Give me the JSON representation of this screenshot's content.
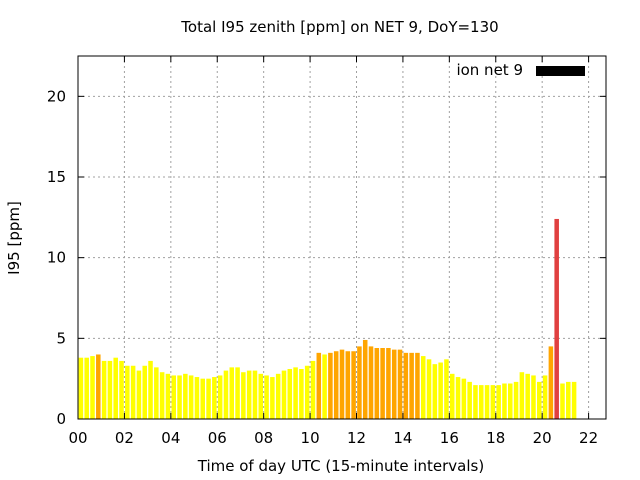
{
  "chart_data": {
    "type": "bar",
    "title": "Total I95 zenith [ppm] on NET 9, DoY=130",
    "xlabel": "Time of day UTC (15-minute intervals)",
    "ylabel": "I95 [ppm]",
    "xlim": [
      0,
      22.75
    ],
    "ylim": [
      0,
      22.5
    ],
    "grid": true,
    "legend_position": "top-right",
    "legend": [
      {
        "name": "ion net 9",
        "color": "#000000"
      }
    ],
    "x_ticks": [
      "00",
      "02",
      "04",
      "06",
      "08",
      "10",
      "12",
      "14",
      "16",
      "18",
      "20",
      "22"
    ],
    "y_ticks": [
      "0",
      "5",
      "10",
      "15",
      "20"
    ],
    "colors": {
      "low": "#ffff00",
      "medium": "#ffa500",
      "high": "#e04040"
    },
    "interval_hours": 0.25,
    "values": [
      3.8,
      3.8,
      3.9,
      4.0,
      3.6,
      3.6,
      3.8,
      3.6,
      3.3,
      3.3,
      3.0,
      3.3,
      3.6,
      3.2,
      2.9,
      2.8,
      2.7,
      2.7,
      2.8,
      2.7,
      2.6,
      2.5,
      2.5,
      2.6,
      2.7,
      3.0,
      3.2,
      3.2,
      2.9,
      3.0,
      3.0,
      2.8,
      2.7,
      2.6,
      2.8,
      3.0,
      3.1,
      3.2,
      3.1,
      3.3,
      3.6,
      4.1,
      4.0,
      4.1,
      4.2,
      4.3,
      4.2,
      4.2,
      4.5,
      4.9,
      4.5,
      4.4,
      4.4,
      4.4,
      4.3,
      4.3,
      4.1,
      4.1,
      4.1,
      3.9,
      3.7,
      3.4,
      3.5,
      3.7,
      2.8,
      2.6,
      2.5,
      2.3,
      2.1,
      2.1,
      2.1,
      2.1,
      2.1,
      2.2,
      2.2,
      2.3,
      2.9,
      2.8,
      2.7,
      2.3,
      2.7,
      4.5,
      12.4,
      2.2,
      2.3,
      2.3
    ],
    "levels": [
      "low",
      "low",
      "low",
      "medium",
      "low",
      "low",
      "low",
      "low",
      "low",
      "low",
      "low",
      "low",
      "low",
      "low",
      "low",
      "low",
      "low",
      "low",
      "low",
      "low",
      "low",
      "low",
      "low",
      "low",
      "low",
      "low",
      "low",
      "low",
      "low",
      "low",
      "low",
      "low",
      "low",
      "low",
      "low",
      "low",
      "low",
      "low",
      "low",
      "low",
      "low",
      "medium",
      "low",
      "medium",
      "medium",
      "medium",
      "medium",
      "medium",
      "medium",
      "medium",
      "medium",
      "medium",
      "medium",
      "medium",
      "medium",
      "medium",
      "medium",
      "medium",
      "medium",
      "low",
      "low",
      "low",
      "low",
      "low",
      "low",
      "low",
      "low",
      "low",
      "low",
      "low",
      "low",
      "low",
      "low",
      "low",
      "low",
      "low",
      "low",
      "low",
      "low",
      "low",
      "low",
      "medium",
      "high",
      "low",
      "low",
      "low"
    ]
  }
}
